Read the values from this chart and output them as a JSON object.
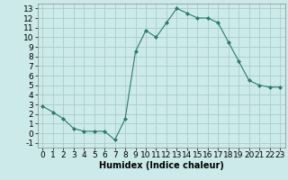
{
  "x": [
    0,
    1,
    2,
    3,
    4,
    5,
    6,
    7,
    8,
    9,
    10,
    11,
    12,
    13,
    14,
    15,
    16,
    17,
    18,
    19,
    20,
    21,
    22,
    23
  ],
  "y": [
    2.8,
    2.2,
    1.5,
    0.5,
    0.2,
    0.2,
    0.2,
    -0.7,
    1.5,
    8.5,
    10.7,
    10.0,
    11.5,
    13.0,
    12.5,
    12.0,
    12.0,
    11.5,
    9.5,
    7.5,
    5.5,
    5.0,
    4.8,
    4.8
  ],
  "xlabel": "Humidex (Indice chaleur)",
  "line_color": "#2d7a6a",
  "marker": "D",
  "marker_size": 2,
  "bg_color": "#cceaea",
  "grid_color": "#aacccc",
  "xlim": [
    -0.5,
    23.5
  ],
  "ylim": [
    -1.5,
    13.5
  ],
  "yticks": [
    -1,
    0,
    1,
    2,
    3,
    4,
    5,
    6,
    7,
    8,
    9,
    10,
    11,
    12,
    13
  ],
  "xticks": [
    0,
    1,
    2,
    3,
    4,
    5,
    6,
    7,
    8,
    9,
    10,
    11,
    12,
    13,
    14,
    15,
    16,
    17,
    18,
    19,
    20,
    21,
    22,
    23
  ],
  "xlabel_fontsize": 7,
  "tick_fontsize": 6.5
}
